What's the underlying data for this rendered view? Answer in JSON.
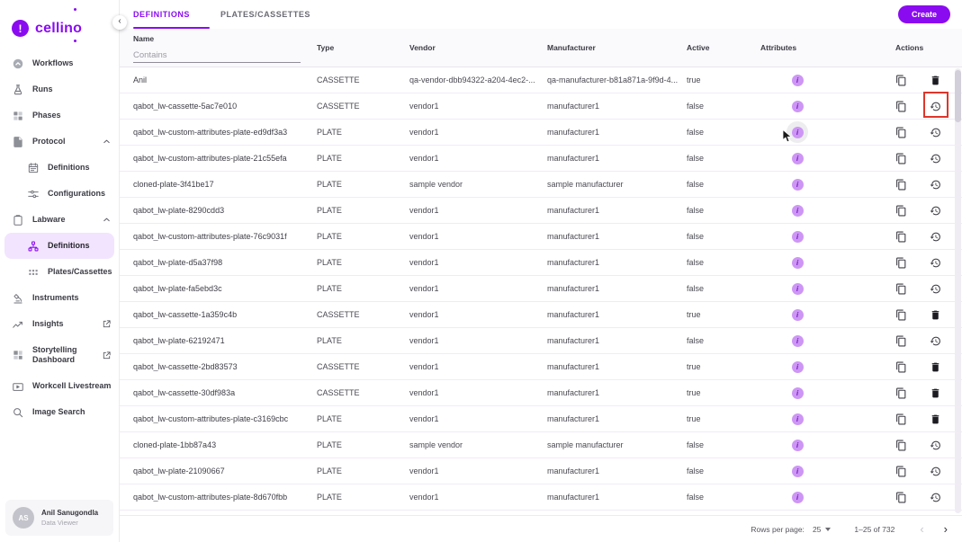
{
  "brand": {
    "name": "cellino"
  },
  "colors": {
    "accent": "#8A0BF0",
    "active_item_bg": "#F2E4FE",
    "info_badge_bg": "#CD96F4",
    "info_badge_fg": "#7C1EC8",
    "highlight_box": "#E0352B",
    "row_border": "#F1EAF7"
  },
  "sidebar": {
    "items": [
      {
        "label": "Workflows",
        "icon": "workflows",
        "level": 0
      },
      {
        "label": "Runs",
        "icon": "runs",
        "level": 0
      },
      {
        "label": "Phases",
        "icon": "phases",
        "level": 0
      },
      {
        "label": "Protocol",
        "icon": "protocol",
        "level": 0,
        "expanded": true
      },
      {
        "label": "Definitions",
        "icon": "calendar",
        "level": 1
      },
      {
        "label": "Configurations",
        "icon": "tune",
        "level": 1
      },
      {
        "label": "Labware",
        "icon": "labware",
        "level": 0,
        "expanded": true
      },
      {
        "label": "Definitions",
        "icon": "hierarchy",
        "level": 1,
        "active": true
      },
      {
        "label": "Plates/Cassettes",
        "icon": "grid",
        "level": 1
      },
      {
        "label": "Instruments",
        "icon": "microscope",
        "level": 0
      },
      {
        "label": "Insights",
        "icon": "insights",
        "level": 0,
        "external": true
      },
      {
        "label": "Storytelling Dashboard",
        "icon": "dashboard",
        "level": 0,
        "external": true,
        "twoLine": true
      },
      {
        "label": "Workcell Livestream",
        "icon": "livestream",
        "level": 0
      },
      {
        "label": "Image Search",
        "icon": "search",
        "level": 0
      }
    ],
    "user": {
      "initials": "AS",
      "name": "Anil Sanugondla",
      "role": "Data Viewer"
    }
  },
  "tabs": [
    {
      "label": "DEFINITIONS",
      "active": true
    },
    {
      "label": "PLATES/CASSETTES",
      "active": false
    }
  ],
  "create_button": "Create",
  "table": {
    "filter": {
      "label": "Name",
      "placeholder": "Contains"
    },
    "columns": [
      "Name",
      "Type",
      "Vendor",
      "Manufacturer",
      "Active",
      "Attributes",
      "Actions"
    ],
    "rows": [
      {
        "name": "Anil",
        "type": "CASSETTE",
        "vendor": "qa-vendor-dbb94322-a204-4ec2-...",
        "manufacturer": "qa-manufacturer-b81a871a-9f9d-4...",
        "active": "true",
        "action": "delete"
      },
      {
        "name": "qabot_lw-cassette-5ac7e010",
        "type": "CASSETTE",
        "vendor": "vendor1",
        "manufacturer": "manufacturer1",
        "active": "false",
        "action": "restore",
        "action_highlighted": true
      },
      {
        "name": "qabot_lw-custom-attributes-plate-ed9df3a3",
        "type": "PLATE",
        "vendor": "vendor1",
        "manufacturer": "manufacturer1",
        "active": "false",
        "action": "restore",
        "attr_hovered": true
      },
      {
        "name": "qabot_lw-custom-attributes-plate-21c55efa",
        "type": "PLATE",
        "vendor": "vendor1",
        "manufacturer": "manufacturer1",
        "active": "false",
        "action": "restore"
      },
      {
        "name": "cloned-plate-3f41be17",
        "type": "PLATE",
        "vendor": "sample vendor",
        "manufacturer": "sample manufacturer",
        "active": "false",
        "action": "restore"
      },
      {
        "name": "qabot_lw-plate-8290cdd3",
        "type": "PLATE",
        "vendor": "vendor1",
        "manufacturer": "manufacturer1",
        "active": "false",
        "action": "restore"
      },
      {
        "name": "qabot_lw-custom-attributes-plate-76c9031f",
        "type": "PLATE",
        "vendor": "vendor1",
        "manufacturer": "manufacturer1",
        "active": "false",
        "action": "restore"
      },
      {
        "name": "qabot_lw-plate-d5a37f98",
        "type": "PLATE",
        "vendor": "vendor1",
        "manufacturer": "manufacturer1",
        "active": "false",
        "action": "restore"
      },
      {
        "name": "qabot_lw-plate-fa5ebd3c",
        "type": "PLATE",
        "vendor": "vendor1",
        "manufacturer": "manufacturer1",
        "active": "false",
        "action": "restore"
      },
      {
        "name": "qabot_lw-cassette-1a359c4b",
        "type": "CASSETTE",
        "vendor": "vendor1",
        "manufacturer": "manufacturer1",
        "active": "true",
        "action": "delete"
      },
      {
        "name": "qabot_lw-plate-62192471",
        "type": "PLATE",
        "vendor": "vendor1",
        "manufacturer": "manufacturer1",
        "active": "false",
        "action": "restore"
      },
      {
        "name": "qabot_lw-cassette-2bd83573",
        "type": "CASSETTE",
        "vendor": "vendor1",
        "manufacturer": "manufacturer1",
        "active": "true",
        "action": "delete"
      },
      {
        "name": "qabot_lw-cassette-30df983a",
        "type": "CASSETTE",
        "vendor": "vendor1",
        "manufacturer": "manufacturer1",
        "active": "true",
        "action": "delete"
      },
      {
        "name": "qabot_lw-custom-attributes-plate-c3169cbc",
        "type": "PLATE",
        "vendor": "vendor1",
        "manufacturer": "manufacturer1",
        "active": "true",
        "action": "delete"
      },
      {
        "name": "cloned-plate-1bb87a43",
        "type": "PLATE",
        "vendor": "sample vendor",
        "manufacturer": "sample manufacturer",
        "active": "false",
        "action": "restore"
      },
      {
        "name": "qabot_lw-plate-21090667",
        "type": "PLATE",
        "vendor": "vendor1",
        "manufacturer": "manufacturer1",
        "active": "false",
        "action": "restore"
      },
      {
        "name": "qabot_lw-custom-attributes-plate-8d670fbb",
        "type": "PLATE",
        "vendor": "vendor1",
        "manufacturer": "manufacturer1",
        "active": "false",
        "action": "restore"
      }
    ]
  },
  "pagination": {
    "rows_per_page_label": "Rows per page:",
    "rows_per_page": "25",
    "range": "1–25 of 732",
    "prev": "‹",
    "next": "›"
  }
}
